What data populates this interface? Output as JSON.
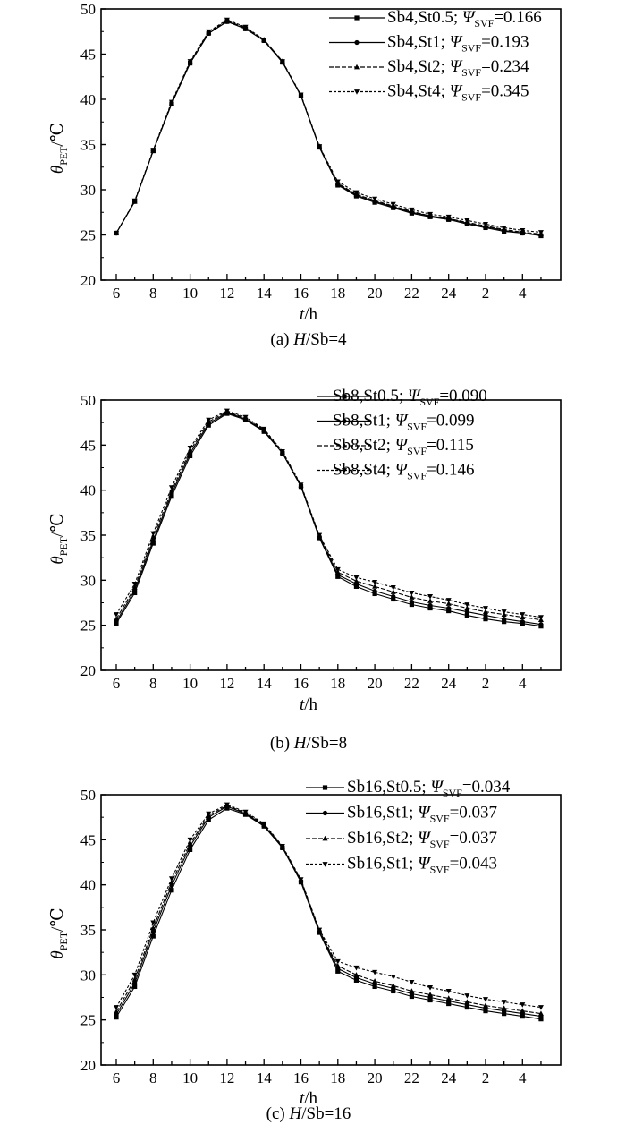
{
  "figure": {
    "captions": [
      "(a) H/Sb=4",
      "(b) H/Sb=8",
      "(c) H/Sb=16"
    ]
  },
  "chart_data": [
    {
      "type": "line",
      "caption": "(a) H/Sb=4",
      "xlabel": "t/h",
      "ylabel": "θPET/℃",
      "ylim": [
        20,
        50
      ],
      "yticks": [
        20,
        25,
        30,
        35,
        40,
        45,
        50
      ],
      "x_hours": [
        6,
        7,
        8,
        9,
        10,
        11,
        12,
        13,
        14,
        15,
        16,
        17,
        18,
        19,
        20,
        21,
        22,
        23,
        24,
        25,
        26,
        27,
        28,
        29
      ],
      "xtick_labels": [
        "6",
        "8",
        "10",
        "12",
        "14",
        "16",
        "18",
        "20",
        "22",
        "24",
        "2",
        "4"
      ],
      "legend_position": "top-right",
      "series": [
        {
          "name": "Sb4,St0.5; ΨSVF=0.166",
          "marker": "square",
          "values": [
            25.2,
            28.7,
            34.3,
            39.5,
            44.0,
            47.3,
            48.6,
            47.8,
            46.5,
            44.1,
            40.4,
            34.7,
            30.5,
            29.3,
            28.6,
            28.0,
            27.4,
            27.0,
            26.7,
            26.2,
            25.8,
            25.4,
            25.2,
            24.9
          ]
        },
        {
          "name": "Sb4,St1; ΨSVF=0.193",
          "marker": "circle",
          "values": [
            25.2,
            28.7,
            34.3,
            39.5,
            44.0,
            47.3,
            48.6,
            47.8,
            46.5,
            44.1,
            40.4,
            34.7,
            30.6,
            29.4,
            28.7,
            28.1,
            27.5,
            27.1,
            26.8,
            26.3,
            25.9,
            25.5,
            25.2,
            25.0
          ]
        },
        {
          "name": "Sb4,St2; ΨSVF=0.234",
          "marker": "triangle-up",
          "values": [
            25.2,
            28.7,
            34.3,
            39.6,
            44.1,
            47.4,
            48.7,
            47.9,
            46.6,
            44.2,
            40.4,
            34.8,
            30.7,
            29.5,
            28.8,
            28.2,
            27.6,
            27.1,
            26.8,
            26.4,
            26.0,
            25.6,
            25.3,
            25.1
          ]
        },
        {
          "name": "Sb4,St4; ΨSVF=0.345",
          "marker": "triangle-down",
          "values": [
            25.2,
            28.8,
            34.4,
            39.7,
            44.2,
            47.5,
            48.8,
            48.0,
            46.6,
            44.2,
            40.5,
            34.8,
            30.9,
            29.7,
            29.0,
            28.4,
            27.8,
            27.3,
            27.0,
            26.6,
            26.2,
            25.8,
            25.5,
            25.3
          ]
        }
      ]
    },
    {
      "type": "line",
      "caption": "(b) H/Sb=8",
      "xlabel": "t/h",
      "ylabel": "θPET/℃",
      "ylim": [
        20,
        50
      ],
      "yticks": [
        20,
        25,
        30,
        35,
        40,
        45,
        50
      ],
      "x_hours": [
        6,
        7,
        8,
        9,
        10,
        11,
        12,
        13,
        14,
        15,
        16,
        17,
        18,
        19,
        20,
        21,
        22,
        23,
        24,
        25,
        26,
        27,
        28,
        29
      ],
      "xtick_labels": [
        "6",
        "8",
        "10",
        "12",
        "14",
        "16",
        "18",
        "20",
        "22",
        "24",
        "2",
        "4"
      ],
      "legend_position": "top-right",
      "series": [
        {
          "name": "Sb8,St0.5; ΨSVF=0.090",
          "marker": "square",
          "values": [
            25.2,
            28.6,
            34.1,
            39.3,
            43.8,
            47.2,
            48.5,
            47.8,
            46.5,
            44.1,
            40.4,
            34.7,
            30.4,
            29.3,
            28.5,
            27.9,
            27.3,
            26.9,
            26.6,
            26.1,
            25.7,
            25.4,
            25.2,
            24.9
          ]
        },
        {
          "name": "Sb8,St1; ΨSVF=0.099",
          "marker": "circle",
          "values": [
            25.4,
            28.9,
            34.4,
            39.6,
            44.1,
            47.4,
            48.6,
            47.9,
            46.6,
            44.1,
            40.4,
            34.8,
            30.6,
            29.6,
            28.8,
            28.2,
            27.6,
            27.2,
            26.9,
            26.5,
            26.1,
            25.7,
            25.4,
            25.1
          ]
        },
        {
          "name": "Sb8,St2; ΨSVF=0.115",
          "marker": "triangle-up",
          "values": [
            25.7,
            29.2,
            34.8,
            39.9,
            44.4,
            47.6,
            48.7,
            48.0,
            46.7,
            44.2,
            40.5,
            34.9,
            30.9,
            29.9,
            29.3,
            28.7,
            28.1,
            27.7,
            27.4,
            26.9,
            26.5,
            26.2,
            25.9,
            25.6
          ]
        },
        {
          "name": "Sb8,St4; ΨSVF=0.146",
          "marker": "triangle-down",
          "values": [
            26.2,
            29.6,
            35.2,
            40.3,
            44.7,
            47.8,
            48.8,
            48.1,
            46.8,
            44.3,
            40.6,
            35.0,
            31.2,
            30.3,
            29.8,
            29.2,
            28.6,
            28.2,
            27.8,
            27.3,
            26.9,
            26.5,
            26.2,
            25.9
          ]
        }
      ]
    },
    {
      "type": "line",
      "caption": "(c) H/Sb=16",
      "xlabel": "t/h",
      "ylabel": "θPET/℃",
      "ylim": [
        20,
        50
      ],
      "yticks": [
        20,
        25,
        30,
        35,
        40,
        45,
        50
      ],
      "x_hours": [
        6,
        7,
        8,
        9,
        10,
        11,
        12,
        13,
        14,
        15,
        16,
        17,
        18,
        19,
        20,
        21,
        22,
        23,
        24,
        25,
        26,
        27,
        28,
        29
      ],
      "xtick_labels": [
        "6",
        "8",
        "10",
        "12",
        "14",
        "16",
        "18",
        "20",
        "22",
        "24",
        "2",
        "4"
      ],
      "legend_position": "top-right",
      "series": [
        {
          "name": "Sb16,St0.5; ΨSVF=0.034",
          "marker": "square",
          "values": [
            25.3,
            28.7,
            34.3,
            39.4,
            43.9,
            47.2,
            48.5,
            47.8,
            46.5,
            44.1,
            40.3,
            34.7,
            30.4,
            29.4,
            28.7,
            28.2,
            27.6,
            27.2,
            26.8,
            26.4,
            26.0,
            25.7,
            25.4,
            25.1
          ]
        },
        {
          "name": "Sb16,St1; ΨSVF=0.037",
          "marker": "circle",
          "values": [
            25.6,
            29.1,
            34.8,
            39.9,
            44.3,
            47.5,
            48.7,
            47.9,
            46.6,
            44.2,
            40.4,
            34.8,
            30.7,
            29.7,
            29.0,
            28.5,
            27.9,
            27.5,
            27.1,
            26.7,
            26.3,
            26.0,
            25.7,
            25.4
          ]
        },
        {
          "name": "Sb16,St2; ΨSVF=0.037",
          "marker": "triangle-up",
          "values": [
            25.9,
            29.5,
            35.2,
            40.3,
            44.6,
            47.7,
            48.8,
            48.0,
            46.7,
            44.2,
            40.5,
            34.9,
            31.0,
            30.0,
            29.3,
            28.8,
            28.2,
            27.8,
            27.4,
            27.0,
            26.6,
            26.3,
            26.0,
            25.7
          ]
        },
        {
          "name": "Sb16,St1; ΨSVF=0.043",
          "marker": "triangle-down",
          "values": [
            26.4,
            30.0,
            35.8,
            40.7,
            45.0,
            47.9,
            48.9,
            48.1,
            46.8,
            44.3,
            40.6,
            35.0,
            31.5,
            30.8,
            30.3,
            29.8,
            29.2,
            28.6,
            28.2,
            27.7,
            27.3,
            27.0,
            26.7,
            26.4
          ]
        }
      ]
    }
  ]
}
